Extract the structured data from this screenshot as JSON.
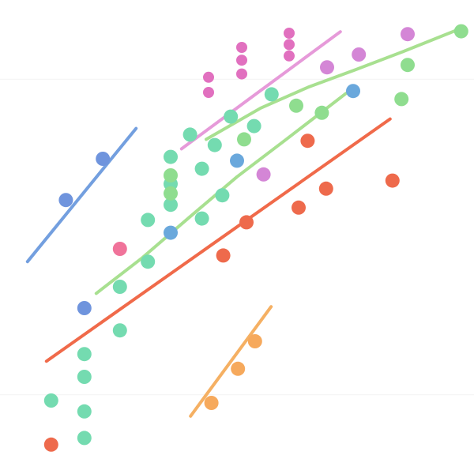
{
  "chart_data": {
    "type": "scatter",
    "title": "",
    "xlabel": "",
    "ylabel": "",
    "xlim": [
      0,
      100
    ],
    "ylim": [
      0,
      100
    ],
    "grid": false,
    "legend": "none",
    "series": [
      {
        "color": "#74dbb0",
        "size": "medium",
        "points": [
          [
            10.8,
            15.5
          ],
          [
            17.8,
            7.6
          ],
          [
            17.8,
            13.2
          ],
          [
            17.8,
            20.5
          ],
          [
            17.8,
            25.3
          ],
          [
            25.3,
            30.3
          ],
          [
            25.3,
            39.5
          ],
          [
            31.2,
            44.8
          ],
          [
            31.2,
            53.6
          ],
          [
            36.0,
            56.8
          ],
          [
            36.0,
            61.2
          ],
          [
            36.0,
            66.9
          ],
          [
            40.1,
            71.6
          ],
          [
            42.6,
            53.9
          ],
          [
            42.6,
            64.4
          ],
          [
            45.3,
            69.4
          ],
          [
            46.9,
            58.8
          ],
          [
            48.7,
            75.4
          ],
          [
            53.6,
            73.4
          ],
          [
            57.3,
            80.1
          ]
        ]
      },
      {
        "color": "#8fdd8f",
        "size": "medium",
        "points": [
          [
            36.0,
            59.2
          ],
          [
            36.0,
            63.0
          ],
          [
            51.5,
            70.6
          ],
          [
            62.5,
            77.7
          ],
          [
            67.9,
            76.2
          ],
          [
            84.7,
            79.1
          ],
          [
            86.0,
            86.3
          ],
          [
            97.3,
            93.4
          ]
        ]
      },
      {
        "color": "#ee6a4c",
        "size": "medium",
        "points": [
          [
            10.8,
            6.2
          ],
          [
            47.1,
            46.1
          ],
          [
            52.0,
            53.1
          ],
          [
            63.0,
            56.2
          ],
          [
            64.9,
            70.3
          ],
          [
            68.8,
            60.2
          ],
          [
            82.8,
            61.9
          ]
        ]
      },
      {
        "color": "#e170bf",
        "size": "small",
        "points": [
          [
            44.0,
            80.5
          ],
          [
            44.0,
            83.7
          ],
          [
            51.0,
            84.4
          ],
          [
            51.0,
            87.3
          ],
          [
            51.0,
            90.0
          ],
          [
            61.0,
            88.2
          ],
          [
            61.0,
            90.6
          ],
          [
            61.0,
            93.0
          ]
        ]
      },
      {
        "color": "#d486d6",
        "size": "medium",
        "points": [
          [
            55.6,
            63.2
          ],
          [
            69.0,
            85.8
          ],
          [
            75.7,
            88.5
          ],
          [
            86.0,
            92.8
          ]
        ]
      },
      {
        "color": "#6aa8dc",
        "size": "medium",
        "points": [
          [
            36.0,
            50.9
          ],
          [
            50.0,
            66.1
          ],
          [
            74.5,
            80.8
          ]
        ]
      },
      {
        "color": "#6f94dd",
        "size": "medium",
        "points": [
          [
            13.9,
            57.8
          ],
          [
            17.8,
            35.0
          ],
          [
            21.7,
            66.5
          ]
        ]
      },
      {
        "color": "#f0739a",
        "size": "medium",
        "points": [
          [
            25.3,
            47.5
          ]
        ]
      },
      {
        "color": "#f6a95c",
        "size": "medium",
        "points": [
          [
            44.6,
            15.0
          ],
          [
            50.2,
            22.2
          ],
          [
            53.8,
            28.0
          ]
        ]
      }
    ],
    "trendlines": [
      {
        "color": "#f06a4a",
        "points": [
          [
            9.8,
            23.8
          ],
          [
            82.3,
            74.9
          ]
        ]
      },
      {
        "color": "#a8e090",
        "points": [
          [
            20.3,
            38.1
          ],
          [
            30.0,
            45.6
          ],
          [
            40.0,
            54.2
          ],
          [
            50.0,
            62.7
          ],
          [
            60.0,
            70.3
          ],
          [
            73.0,
            80.3
          ]
        ]
      },
      {
        "color": "#a8e090",
        "points": [
          [
            43.5,
            70.6
          ],
          [
            55.0,
            77.2
          ],
          [
            65.0,
            81.6
          ],
          [
            75.0,
            85.3
          ],
          [
            85.0,
            89.1
          ],
          [
            97.5,
            94.1
          ]
        ]
      },
      {
        "color": "#e69ad9",
        "points": [
          [
            38.3,
            68.6
          ],
          [
            71.8,
            93.3
          ]
        ]
      },
      {
        "color": "#739fdf",
        "points": [
          [
            5.8,
            44.8
          ],
          [
            28.7,
            72.9
          ]
        ]
      },
      {
        "color": "#f5b063",
        "points": [
          [
            40.2,
            12.2
          ],
          [
            57.2,
            35.3
          ]
        ]
      }
    ],
    "gridlines_y": [
      16.7,
      83.3
    ]
  }
}
